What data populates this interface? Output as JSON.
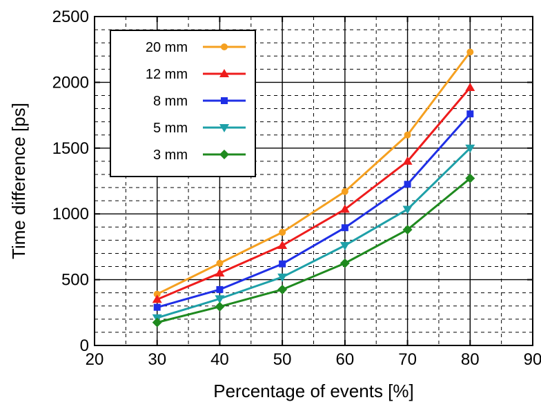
{
  "chart_data": {
    "type": "line",
    "title": "",
    "xlabel": "Percentage of events [%]",
    "ylabel": "Time difference [ps]",
    "xlim": [
      20,
      90
    ],
    "ylim": [
      0,
      2500
    ],
    "x_major_ticks": [
      20,
      30,
      40,
      50,
      60,
      70,
      80,
      90
    ],
    "y_major_ticks": [
      0,
      500,
      1000,
      1500,
      2000,
      2500
    ],
    "x_tick_labels": [
      "20",
      "30",
      "40",
      "50",
      "60",
      "70",
      "80",
      "90"
    ],
    "y_tick_labels": [
      "0",
      "500",
      "1000",
      "1500",
      "2000",
      "2500"
    ],
    "grid": "on (major solid, minor dashed)",
    "legend_position": "top-left",
    "x": [
      30,
      40,
      50,
      60,
      70,
      80
    ],
    "series": [
      {
        "name": "20 mm",
        "color": "#f5a020",
        "marker": "circle",
        "values": [
          390,
          625,
          860,
          1170,
          1600,
          2230
        ]
      },
      {
        "name": "12 mm",
        "color": "#ee1c1c",
        "marker": "triangle-up",
        "values": [
          350,
          550,
          760,
          1035,
          1400,
          1960
        ]
      },
      {
        "name": "8 mm",
        "color": "#1f2fe6",
        "marker": "square",
        "values": [
          290,
          425,
          620,
          895,
          1225,
          1760
        ]
      },
      {
        "name": "5 mm",
        "color": "#1ea0a8",
        "marker": "triangle-down",
        "values": [
          210,
          355,
          520,
          760,
          1035,
          1500
        ]
      },
      {
        "name": "3 mm",
        "color": "#1f8a1f",
        "marker": "diamond",
        "values": [
          175,
          295,
          425,
          625,
          880,
          1270
        ]
      }
    ]
  }
}
